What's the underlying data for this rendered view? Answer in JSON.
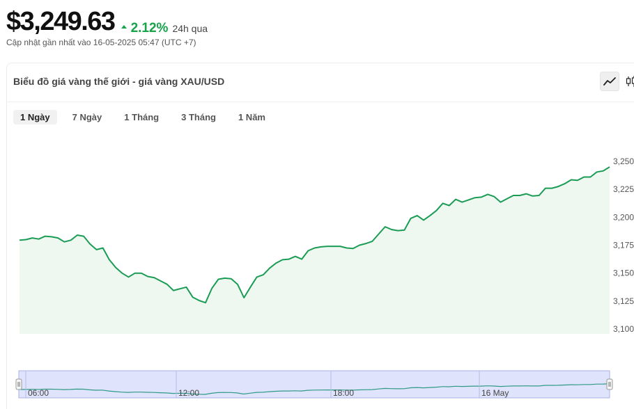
{
  "header": {
    "price": "$3,249.63",
    "change_pct": "2.12%",
    "change_period": "24h qua",
    "updated": "Cập nhật gần nhất vào 16-05-2025 05:47 (UTC +7)"
  },
  "card": {
    "title": "Biểu đồ giá vàng thế giới - giá vàng XAU/USD",
    "tabs": [
      "1 Ngày",
      "7 Ngày",
      "1 Tháng",
      "3 Tháng",
      "1 Năm"
    ],
    "active_tab": 0
  },
  "colors": {
    "up": "#16a34a",
    "line": "#1a9c55",
    "area": "#eef8f0",
    "navigator_bg": "#dfe3fb",
    "navigator_line": "#2f9a86"
  },
  "icons": [
    "up-triangle-icon",
    "line-chart-icon",
    "candlestick-icon",
    "navigator-handle-icon"
  ],
  "chart_data": {
    "type": "area",
    "ylim": [
      3100,
      3250
    ],
    "yticks": [
      3100,
      3125,
      3150,
      3175,
      3200,
      3225,
      3250
    ],
    "ytick_labels": [
      "3,100",
      "3,125",
      "3,150",
      "3,175",
      "3,200",
      "3,225",
      "3,250"
    ],
    "grid": false,
    "values": [
      3179.5,
      3180,
      3181.5,
      3180.5,
      3183,
      3182.5,
      3181.5,
      3178,
      3179.5,
      3184,
      3183,
      3176,
      3171,
      3172.5,
      3162,
      3155,
      3150,
      3146.5,
      3150,
      3150,
      3147,
      3146,
      3143,
      3140,
      3134.5,
      3136,
      3137.5,
      3128.5,
      3125.5,
      3123.5,
      3136.5,
      3144.5,
      3145.5,
      3145,
      3140,
      3128,
      3137.5,
      3146.5,
      3148.5,
      3154.5,
      3159,
      3162,
      3162.5,
      3165,
      3162.5,
      3170,
      3172.5,
      3173.5,
      3174,
      3174,
      3174,
      3172.5,
      3172,
      3175,
      3176.5,
      3178.5,
      3185,
      3191.5,
      3189,
      3188,
      3188.5,
      3199,
      3201.5,
      3197.5,
      3201.5,
      3206,
      3212.5,
      3210.5,
      3216,
      3213.5,
      3215.5,
      3217.5,
      3218,
      3220.5,
      3218.5,
      3213.5,
      3216.5,
      3219.5,
      3219.5,
      3221,
      3219,
      3219.5,
      3226,
      3226,
      3227.5,
      3230,
      3233.5,
      3233,
      3236,
      3236,
      3240.5,
      3241.5,
      3245
    ],
    "navigator": {
      "x_labels": [
        "06:00",
        "12:00",
        "18:00",
        "16 May"
      ]
    }
  }
}
